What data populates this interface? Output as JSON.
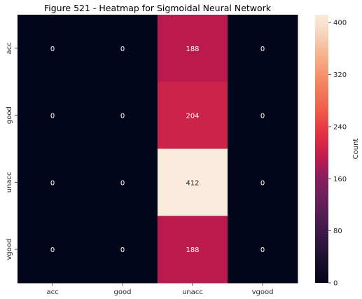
{
  "chart_data": {
    "type": "heatmap",
    "title": "Figure 521 - Heatmap for Sigmoidal Neural Network",
    "x_categories": [
      "acc",
      "good",
      "unacc",
      "vgood"
    ],
    "y_categories": [
      "acc",
      "good",
      "unacc",
      "vgood"
    ],
    "values": [
      [
        0,
        0,
        188,
        0
      ],
      [
        0,
        0,
        204,
        0
      ],
      [
        0,
        0,
        412,
        0
      ],
      [
        0,
        0,
        188,
        0
      ]
    ],
    "colorbar": {
      "label": "Count",
      "range": [
        0,
        412
      ],
      "ticks": [
        0,
        80,
        160,
        240,
        320,
        400
      ],
      "tick_labels": [
        "0",
        "80",
        "160",
        "240",
        "320",
        "400"
      ]
    },
    "colormap": "rocket",
    "cell_text_color_low": "#ffffff",
    "cell_text_color_high": "#262626"
  }
}
